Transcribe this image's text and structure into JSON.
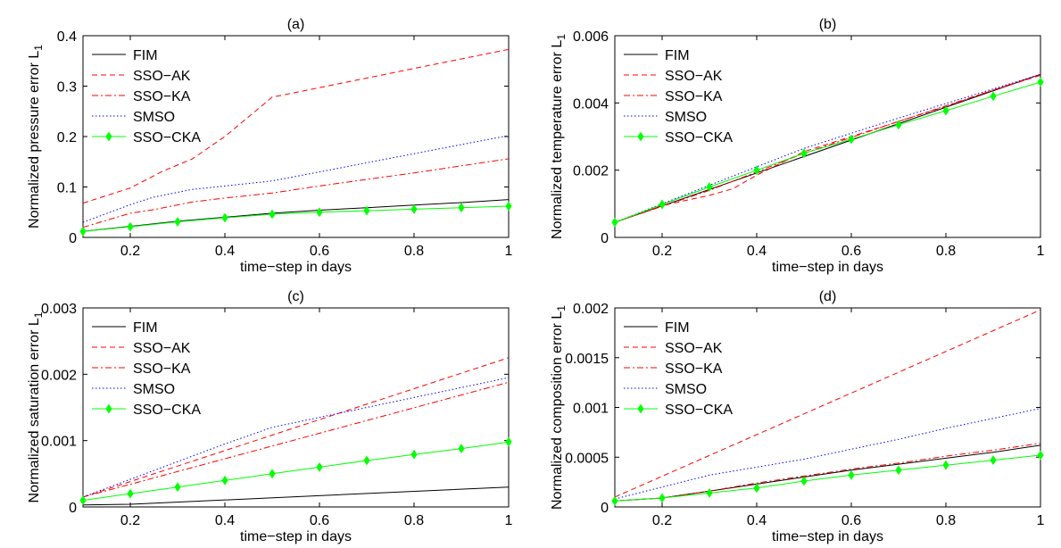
{
  "chart_data": [
    {
      "type": "line",
      "title": "(a)",
      "xlabel": "time−step in days",
      "ylabel": "Normalized pressure error L",
      "ylabel_sub": "1",
      "xlim": [
        0.1,
        1.0
      ],
      "ylim": [
        0,
        0.4
      ],
      "xticks": [
        0.2,
        0.4,
        0.6,
        0.8,
        1.0
      ],
      "xtick_labels": [
        "0.2",
        "0.4",
        "0.6",
        "0.8",
        "1"
      ],
      "yticks": [
        0,
        0.1,
        0.2,
        0.3,
        0.4
      ],
      "ytick_labels": [
        "0",
        "0.1",
        "0.2",
        "0.3",
        "0.4"
      ],
      "legend_position": "top-left",
      "series": [
        {
          "name": "FIM",
          "x": [
            0.1,
            0.2,
            0.3,
            0.4,
            0.5,
            0.6,
            0.7,
            0.8,
            0.9,
            1.0
          ],
          "values": [
            0.012,
            0.022,
            0.032,
            0.04,
            0.048,
            0.054,
            0.059,
            0.064,
            0.069,
            0.075
          ]
        },
        {
          "name": "SSO−AK",
          "x": [
            0.1,
            0.2,
            0.27,
            0.33,
            0.4,
            0.5,
            0.6,
            0.7,
            0.8,
            0.9,
            1.0
          ],
          "values": [
            0.068,
            0.098,
            0.132,
            0.155,
            0.2,
            0.278,
            0.297,
            0.316,
            0.335,
            0.354,
            0.373
          ]
        },
        {
          "name": "SSO−KA",
          "x": [
            0.1,
            0.2,
            0.25,
            0.33,
            0.4,
            0.5,
            0.6,
            0.7,
            0.8,
            0.9,
            1.0
          ],
          "values": [
            0.02,
            0.048,
            0.055,
            0.07,
            0.078,
            0.088,
            0.102,
            0.115,
            0.128,
            0.142,
            0.156
          ]
        },
        {
          "name": "SMSO",
          "x": [
            0.1,
            0.2,
            0.25,
            0.33,
            0.4,
            0.5,
            0.6,
            0.7,
            0.8,
            0.9,
            1.0
          ],
          "values": [
            0.03,
            0.065,
            0.08,
            0.095,
            0.102,
            0.112,
            0.13,
            0.148,
            0.166,
            0.184,
            0.202
          ]
        },
        {
          "name": "SSO−CKA",
          "x": [
            0.1,
            0.2,
            0.3,
            0.4,
            0.5,
            0.6,
            0.7,
            0.8,
            0.9,
            1.0
          ],
          "values": [
            0.012,
            0.021,
            0.031,
            0.039,
            0.046,
            0.05,
            0.053,
            0.056,
            0.059,
            0.062
          ],
          "markers": true
        }
      ]
    },
    {
      "type": "line",
      "title": "(b)",
      "xlabel": "time−step in days",
      "ylabel": "Normalized temperature error L",
      "ylabel_sub": "1",
      "xlim": [
        0.1,
        1.0
      ],
      "ylim": [
        0,
        0.006
      ],
      "xticks": [
        0.2,
        0.4,
        0.6,
        0.8,
        1.0
      ],
      "xtick_labels": [
        "0.2",
        "0.4",
        "0.6",
        "0.8",
        "1"
      ],
      "yticks": [
        0,
        0.002,
        0.004,
        0.006
      ],
      "ytick_labels": [
        "0",
        "0.002",
        "0.004",
        "0.006"
      ],
      "legend_position": "top-left",
      "series": [
        {
          "name": "FIM",
          "x": [
            0.1,
            1.0
          ],
          "values": [
            0.00045,
            0.00485
          ]
        },
        {
          "name": "SSO−AK",
          "x": [
            0.1,
            0.2,
            0.3,
            0.35,
            0.4,
            0.5,
            0.6,
            0.7,
            0.8,
            0.9,
            1.0
          ],
          "values": [
            0.00045,
            0.00095,
            0.00125,
            0.00145,
            0.00185,
            0.00255,
            0.003,
            0.00345,
            0.0039,
            0.00438,
            0.00482
          ]
        },
        {
          "name": "SSO−KA",
          "x": [
            0.1,
            0.3,
            0.5,
            0.7,
            1.0
          ],
          "values": [
            0.00045,
            0.0014,
            0.0025,
            0.00345,
            0.00485
          ]
        },
        {
          "name": "SMSO",
          "x": [
            0.1,
            0.3,
            0.5,
            0.7,
            1.0
          ],
          "values": [
            0.00045,
            0.00155,
            0.00265,
            0.00355,
            0.00485
          ]
        },
        {
          "name": "SSO−CKA",
          "x": [
            0.1,
            0.2,
            0.3,
            0.4,
            0.5,
            0.6,
            0.7,
            0.8,
            0.9,
            1.0
          ],
          "values": [
            0.00045,
            0.00098,
            0.0015,
            0.002,
            0.0025,
            0.00292,
            0.00335,
            0.00377,
            0.0042,
            0.00462
          ],
          "markers": true
        }
      ]
    },
    {
      "type": "line",
      "title": "(c)",
      "xlabel": "time−step in days",
      "ylabel": "Normalized saturation error L",
      "ylabel_sub": "1",
      "xlim": [
        0.1,
        1.0
      ],
      "ylim": [
        0,
        0.003
      ],
      "xticks": [
        0.2,
        0.4,
        0.6,
        0.8,
        1.0
      ],
      "xtick_labels": [
        "0.2",
        "0.4",
        "0.6",
        "0.8",
        "1"
      ],
      "yticks": [
        0,
        0.001,
        0.002,
        0.003
      ],
      "ytick_labels": [
        "0",
        "0.001",
        "0.002",
        "0.003"
      ],
      "legend_position": "top-left",
      "series": [
        {
          "name": "FIM",
          "x": [
            0.1,
            0.2,
            1.0
          ],
          "values": [
            3e-05,
            4e-05,
            0.0003
          ]
        },
        {
          "name": "SSO−AK",
          "x": [
            0.1,
            1.0
          ],
          "values": [
            0.00015,
            0.00225
          ]
        },
        {
          "name": "SSO−KA",
          "x": [
            0.1,
            1.0
          ],
          "values": [
            0.00015,
            0.00188
          ]
        },
        {
          "name": "SMSO",
          "x": [
            0.1,
            0.4,
            0.5,
            1.0
          ],
          "values": [
            0.00015,
            0.00095,
            0.0012,
            0.00195
          ]
        },
        {
          "name": "SSO−CKA",
          "x": [
            0.1,
            0.2,
            0.3,
            0.4,
            0.5,
            0.6,
            0.7,
            0.8,
            0.9,
            1.0
          ],
          "values": [
            0.0001,
            0.0002,
            0.0003,
            0.0004,
            0.0005,
            0.0006,
            0.0007,
            0.00079,
            0.00088,
            0.00098
          ],
          "markers": true
        }
      ]
    },
    {
      "type": "line",
      "title": "(d)",
      "xlabel": "time−step in days",
      "ylabel": "Normalized composition error L",
      "ylabel_sub": "1",
      "xlim": [
        0.1,
        1.0
      ],
      "ylim": [
        0,
        0.002
      ],
      "xticks": [
        0.2,
        0.4,
        0.6,
        0.8,
        1.0
      ],
      "xtick_labels": [
        "0.2",
        "0.4",
        "0.6",
        "0.8",
        "1"
      ],
      "yticks": [
        0,
        0.0005,
        0.001,
        0.0015,
        0.002
      ],
      "ytick_labels": [
        "0",
        "0.0005",
        "0.001",
        "0.0015",
        "0.002"
      ],
      "legend_position": "top-left",
      "series": [
        {
          "name": "FIM",
          "x": [
            0.1,
            0.2,
            0.3,
            0.4,
            0.5,
            0.6,
            0.7,
            0.8,
            0.9,
            1.0
          ],
          "values": [
            6e-05,
            9e-05,
            0.00016,
            0.00023,
            0.0003,
            0.00037,
            0.00043,
            0.00049,
            0.00055,
            0.00062
          ]
        },
        {
          "name": "SSO−AK",
          "x": [
            0.1,
            1.0
          ],
          "values": [
            0.0001,
            0.00198
          ]
        },
        {
          "name": "SSO−KA",
          "x": [
            0.1,
            0.2,
            0.3,
            0.4,
            0.5,
            0.6,
            0.7,
            0.8,
            0.9,
            1.0
          ],
          "values": [
            6e-05,
            9e-05,
            0.00016,
            0.00024,
            0.00031,
            0.00038,
            0.00044,
            0.00051,
            0.00057,
            0.00064
          ]
        },
        {
          "name": "SMSO",
          "x": [
            0.1,
            0.2,
            0.3,
            0.4,
            0.5,
            0.6,
            0.7,
            0.8,
            0.9,
            1.0
          ],
          "values": [
            8e-05,
            0.0002,
            0.00032,
            0.0004,
            0.00048,
            0.00058,
            0.00068,
            0.00079,
            0.00089,
            0.00099
          ]
        },
        {
          "name": "SSO−CKA",
          "x": [
            0.1,
            0.2,
            0.3,
            0.4,
            0.5,
            0.6,
            0.7,
            0.8,
            0.9,
            1.0
          ],
          "values": [
            6e-05,
            9e-05,
            0.00014,
            0.00019,
            0.00026,
            0.00032,
            0.00037,
            0.00042,
            0.00047,
            0.00052
          ],
          "markers": true
        }
      ]
    }
  ],
  "series_styles": [
    {
      "color": "#000000",
      "dash": ""
    },
    {
      "color": "#ff0000",
      "dash": "6,4"
    },
    {
      "color": "#ff0000",
      "dash": "7,3,2,3"
    },
    {
      "color": "#0000ff",
      "dash": "1.5,2.5"
    },
    {
      "color": "#00ff00",
      "dash": "",
      "marker_color": "#00ff00"
    }
  ]
}
